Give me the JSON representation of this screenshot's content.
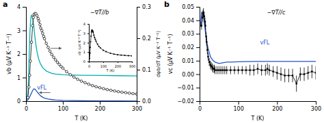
{
  "chart_data": [
    {
      "type": "line",
      "title": "a",
      "xlabel": "T (K)",
      "ylabel": "vb (μV K⁻¹ T⁻¹)",
      "y2label": "dφb/dT (μV K⁻¹ T⁻¹)",
      "xlim": [
        0,
        300
      ],
      "xticks": [
        0,
        100,
        200,
        300
      ],
      "ylim": [
        0,
        4
      ],
      "yticks": [
        0,
        1,
        2,
        3,
        4
      ],
      "y2lim": [
        0,
        0.3
      ],
      "y2ticks": [
        {
          "value": 0,
          "label": "0.0"
        },
        0.1,
        0.2,
        0.3
      ],
      "grid": false,
      "annotations": [
        "−∇T//b",
        "vFL"
      ],
      "series": [
        {
          "color": "#2255cc",
          "line_style": "solid",
          "x": [
            0,
            5,
            8,
            10,
            12,
            15,
            18,
            20,
            22,
            25,
            28,
            30,
            33,
            35,
            40,
            45,
            50,
            60,
            70,
            80,
            100,
            150,
            200,
            250,
            300
          ],
          "values": [
            0.0,
            0.05,
            0.12,
            0.18,
            0.25,
            0.35,
            0.45,
            0.5,
            0.52,
            0.5,
            0.44,
            0.4,
            0.34,
            0.3,
            0.22,
            0.17,
            0.13,
            0.09,
            0.065,
            0.05,
            0.035,
            0.018,
            0.012,
            0.008,
            0.005
          ]
        },
        {
          "color": "#00b0b0",
          "line_style": "solid",
          "x": [
            2,
            3,
            4,
            5,
            6,
            7,
            8,
            9,
            10,
            11,
            12,
            13,
            14,
            15,
            16,
            17,
            18,
            19,
            20,
            21,
            22,
            23,
            24,
            25,
            26,
            27,
            28,
            30,
            33,
            35,
            38,
            40,
            43,
            45,
            48,
            50,
            55,
            60,
            70,
            80,
            100,
            150,
            200,
            250,
            300
          ],
          "values": [
            0.02,
            0.05,
            0.15,
            0.35,
            0.65,
            1.05,
            1.55,
            2.1,
            2.6,
            3.0,
            3.3,
            3.5,
            3.6,
            3.65,
            3.65,
            3.6,
            3.52,
            3.42,
            3.3,
            3.18,
            3.05,
            2.9,
            2.75,
            2.62,
            2.5,
            2.38,
            2.27,
            2.08,
            1.88,
            1.76,
            1.63,
            1.56,
            1.48,
            1.43,
            1.38,
            1.35,
            1.28,
            1.24,
            1.18,
            1.15,
            1.12,
            1.1,
            1.09,
            1.08,
            1.07
          ]
        },
        {
          "color": "black",
          "marker": "circle",
          "line_style": "solid",
          "x": [
            5,
            8,
            10,
            12,
            15,
            18,
            20,
            22,
            25,
            27,
            30,
            33,
            35,
            38,
            40,
            43,
            45,
            48,
            50,
            55,
            60,
            65,
            70,
            75,
            80,
            85,
            90,
            95,
            100,
            110,
            120,
            130,
            140,
            150,
            160,
            170,
            180,
            190,
            200,
            210,
            220,
            230,
            240,
            250,
            260,
            270,
            280,
            290,
            300
          ],
          "values": [
            0.15,
            0.6,
            1.1,
            1.7,
            2.5,
            3.2,
            3.55,
            3.68,
            3.72,
            3.7,
            3.62,
            3.5,
            3.4,
            3.25,
            3.1,
            3.0,
            2.88,
            2.75,
            2.65,
            2.45,
            2.28,
            2.12,
            1.98,
            1.86,
            1.75,
            1.65,
            1.56,
            1.47,
            1.4,
            1.25,
            1.12,
            1.02,
            0.93,
            0.85,
            0.78,
            0.72,
            0.66,
            0.61,
            0.57,
            0.53,
            0.49,
            0.46,
            0.43,
            0.4,
            0.38,
            0.36,
            0.34,
            0.32,
            0.3
          ]
        }
      ]
    },
    {
      "type": "line",
      "xlabel": "T (K)",
      "ylabel": "vb′ (μV K⁻¹ T⁻¹)",
      "xlim": [
        0,
        300
      ],
      "xticks": [
        0,
        100,
        200,
        300
      ],
      "ylim": [
        0,
        4
      ],
      "yticks": [
        0,
        1,
        2,
        3,
        4
      ],
      "grid": false,
      "series": [
        {
          "color": "black",
          "marker": "square",
          "line_style": "solid",
          "x": [
            5,
            8,
            10,
            12,
            15,
            18,
            20,
            22,
            25,
            28,
            30,
            35,
            40,
            45,
            50,
            60,
            70,
            80,
            100,
            120,
            150,
            175,
            200,
            225,
            250,
            275,
            300
          ],
          "values": [
            0.3,
            0.9,
            1.5,
            2.1,
            2.7,
            3.15,
            3.3,
            3.35,
            3.3,
            3.2,
            3.1,
            2.8,
            2.55,
            2.35,
            2.15,
            1.85,
            1.6,
            1.45,
            1.2,
            1.05,
            0.88,
            0.78,
            0.72,
            0.68,
            0.65,
            0.62,
            0.6
          ]
        }
      ]
    },
    {
      "type": "line",
      "title": "b",
      "xlabel": "T (K)",
      "ylabel": "vc (μV K⁻¹ T⁻¹)",
      "xlim": [
        0,
        300
      ],
      "xticks": [
        0,
        100,
        200,
        300
      ],
      "ylim": [
        -0.02,
        0.05
      ],
      "yticks": [
        {
          "value": -0.02,
          "label": "−0.02"
        },
        {
          "value": -0.01,
          "label": "−0.01"
        },
        {
          "value": 0,
          "label": "0.00"
        },
        0.01,
        0.02,
        0.03,
        0.04,
        0.05
      ],
      "grid": false,
      "annotations": [
        "−∇T//c",
        "vFL"
      ],
      "series": [
        {
          "color": "#2255cc",
          "line_style": "solid",
          "x": [
            2,
            4,
            5,
            7,
            8,
            10,
            12,
            14,
            15,
            18,
            20,
            22,
            25,
            28,
            30,
            35,
            40,
            45,
            50,
            60,
            70,
            80,
            100,
            120,
            150,
            175,
            200,
            225,
            250,
            275,
            300
          ],
          "values": [
            0.035,
            0.042,
            0.046,
            0.046,
            0.045,
            0.042,
            0.038,
            0.034,
            0.031,
            0.025,
            0.022,
            0.019,
            0.016,
            0.013,
            0.012,
            0.01,
            0.009,
            0.0085,
            0.008,
            0.0085,
            0.009,
            0.009,
            0.0092,
            0.0094,
            0.0095,
            0.0095,
            0.0095,
            0.0095,
            0.0095,
            0.0095,
            0.0095
          ]
        },
        {
          "color": "black",
          "marker": "square",
          "line_style": "solid",
          "x": [
            5,
            7,
            9,
            10,
            12,
            14,
            15,
            17,
            18,
            20,
            22,
            25,
            28,
            30,
            33,
            35,
            38,
            40,
            45,
            50,
            55,
            60,
            65,
            70,
            80,
            90,
            100,
            110,
            120,
            130,
            140,
            150,
            160,
            170,
            175,
            180,
            190,
            200,
            210,
            220,
            230,
            240,
            250,
            260,
            270,
            280,
            290,
            300
          ],
          "values": [
            0.036,
            0.042,
            0.045,
            0.046,
            0.043,
            0.039,
            0.036,
            0.028,
            0.024,
            0.018,
            0.013,
            0.009,
            0.007,
            0.006,
            0.005,
            0.004,
            0.004,
            0.003,
            0.003,
            0.003,
            0.003,
            0.003,
            0.003,
            0.003,
            0.003,
            0.003,
            0.003,
            0.003,
            0.003,
            0.003,
            0.003,
            0.004,
            0.003,
            0.003,
            0.004,
            0.003,
            0.002,
            0.001,
            0.0,
            -0.001,
            -0.001,
            -0.001,
            -0.007,
            0.0,
            0.0,
            0.001,
            0.002,
            0.001
          ],
          "errors": [
            0.003,
            0.003,
            0.003,
            0.003,
            0.003,
            0.003,
            0.003,
            0.003,
            0.003,
            0.003,
            0.003,
            0.003,
            0.003,
            0.003,
            0.003,
            0.003,
            0.003,
            0.003,
            0.003,
            0.003,
            0.003,
            0.003,
            0.003,
            0.003,
            0.003,
            0.003,
            0.003,
            0.003,
            0.003,
            0.004,
            0.004,
            0.004,
            0.004,
            0.004,
            0.004,
            0.004,
            0.004,
            0.005,
            0.005,
            0.005,
            0.005,
            0.005,
            0.006,
            0.005,
            0.005,
            0.005,
            0.005,
            0.005
          ]
        }
      ]
    }
  ]
}
